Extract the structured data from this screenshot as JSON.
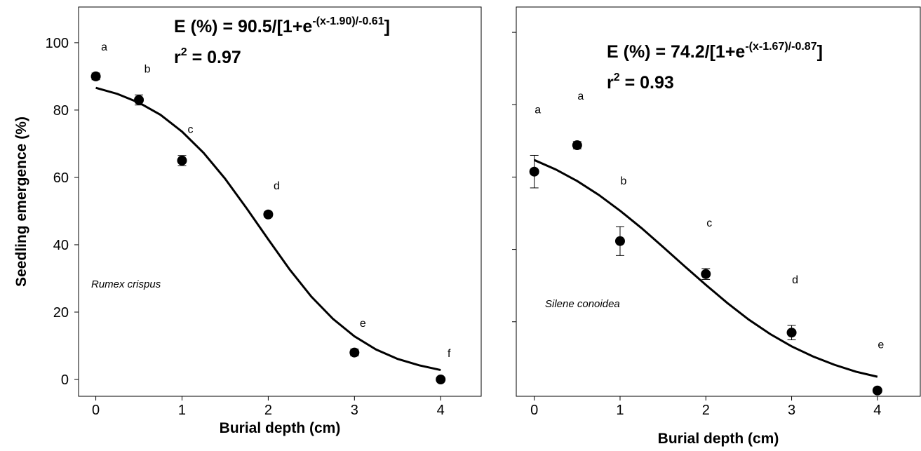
{
  "chart_data": [
    {
      "type": "scatter",
      "color": "#000000",
      "xlabel": "Burial depth (cm)",
      "ylabel": "Seedling emergence (%)",
      "species": "Rumex crispus",
      "equation": {
        "base": "E (%) = 90.5/[1+e",
        "sup": "-(x-1.90)/-0.61",
        "end": "]"
      },
      "r2": {
        "base": "r",
        "sup": "2",
        "end": " = 0.97"
      },
      "x": [
        0,
        0.5,
        1,
        2,
        3,
        4
      ],
      "values": [
        90,
        83,
        65,
        49,
        8,
        0
      ],
      "errors": [
        1,
        1.5,
        1.5,
        0.8,
        1,
        0
      ],
      "letters": [
        "a",
        "b",
        "c",
        "d",
        "e",
        "f"
      ],
      "curve": {
        "x": [
          0,
          0.25,
          0.5,
          0.75,
          1,
          1.25,
          1.5,
          1.75,
          2,
          2.25,
          2.5,
          2.75,
          3,
          3.25,
          3.5,
          3.75,
          4
        ],
        "values": [
          86.6,
          84.8,
          82.2,
          78.6,
          73.6,
          67.3,
          59.6,
          50.8,
          41.6,
          32.6,
          24.6,
          18.0,
          12.8,
          8.9,
          6.1,
          4.2,
          2.8
        ]
      },
      "xlim": [
        -0.2,
        4.47
      ],
      "ylim": [
        -5,
        110.6
      ],
      "xticks": [
        0,
        1,
        2,
        3,
        4
      ],
      "yticks": [
        0,
        20,
        40,
        60,
        80,
        100
      ],
      "ytick_labels": true
    },
    {
      "type": "scatter",
      "color": "#000000",
      "xlabel": "Burial depth (cm)",
      "species": "Silene conoidea",
      "equation": {
        "base": "E (%) = 74.2/[1+e",
        "sup": "-(x-1.67)/-0.87",
        "end": "]"
      },
      "r2": {
        "base": "r",
        "sup": "2",
        "end": " = 0.93"
      },
      "x": [
        0,
        0.5,
        1,
        2,
        3,
        4
      ],
      "values": [
        61.5,
        68.8,
        42.3,
        33.2,
        17,
        1
      ],
      "errors": [
        4.5,
        1,
        4,
        1.5,
        2,
        0
      ],
      "letters": [
        "a",
        "a",
        "b",
        "c",
        "d",
        "e"
      ],
      "curve": {
        "x": [
          0,
          0.25,
          0.5,
          0.75,
          1,
          1.25,
          1.5,
          1.75,
          2,
          2.25,
          2.5,
          2.75,
          3,
          3.25,
          3.5,
          3.75,
          4
        ],
        "values": [
          64.7,
          62.1,
          58.9,
          55.1,
          50.7,
          45.9,
          40.7,
          35.4,
          30.2,
          25.2,
          20.6,
          16.6,
          13.2,
          10.4,
          8.1,
          6.2,
          4.8
        ]
      },
      "xlim": [
        -0.21,
        4.5
      ],
      "ylim": [
        -0.6,
        107
      ],
      "xticks": [
        0,
        1,
        2,
        3,
        4
      ],
      "yticks": [
        20,
        40,
        60,
        80,
        100
      ],
      "ytick_labels": false
    }
  ]
}
